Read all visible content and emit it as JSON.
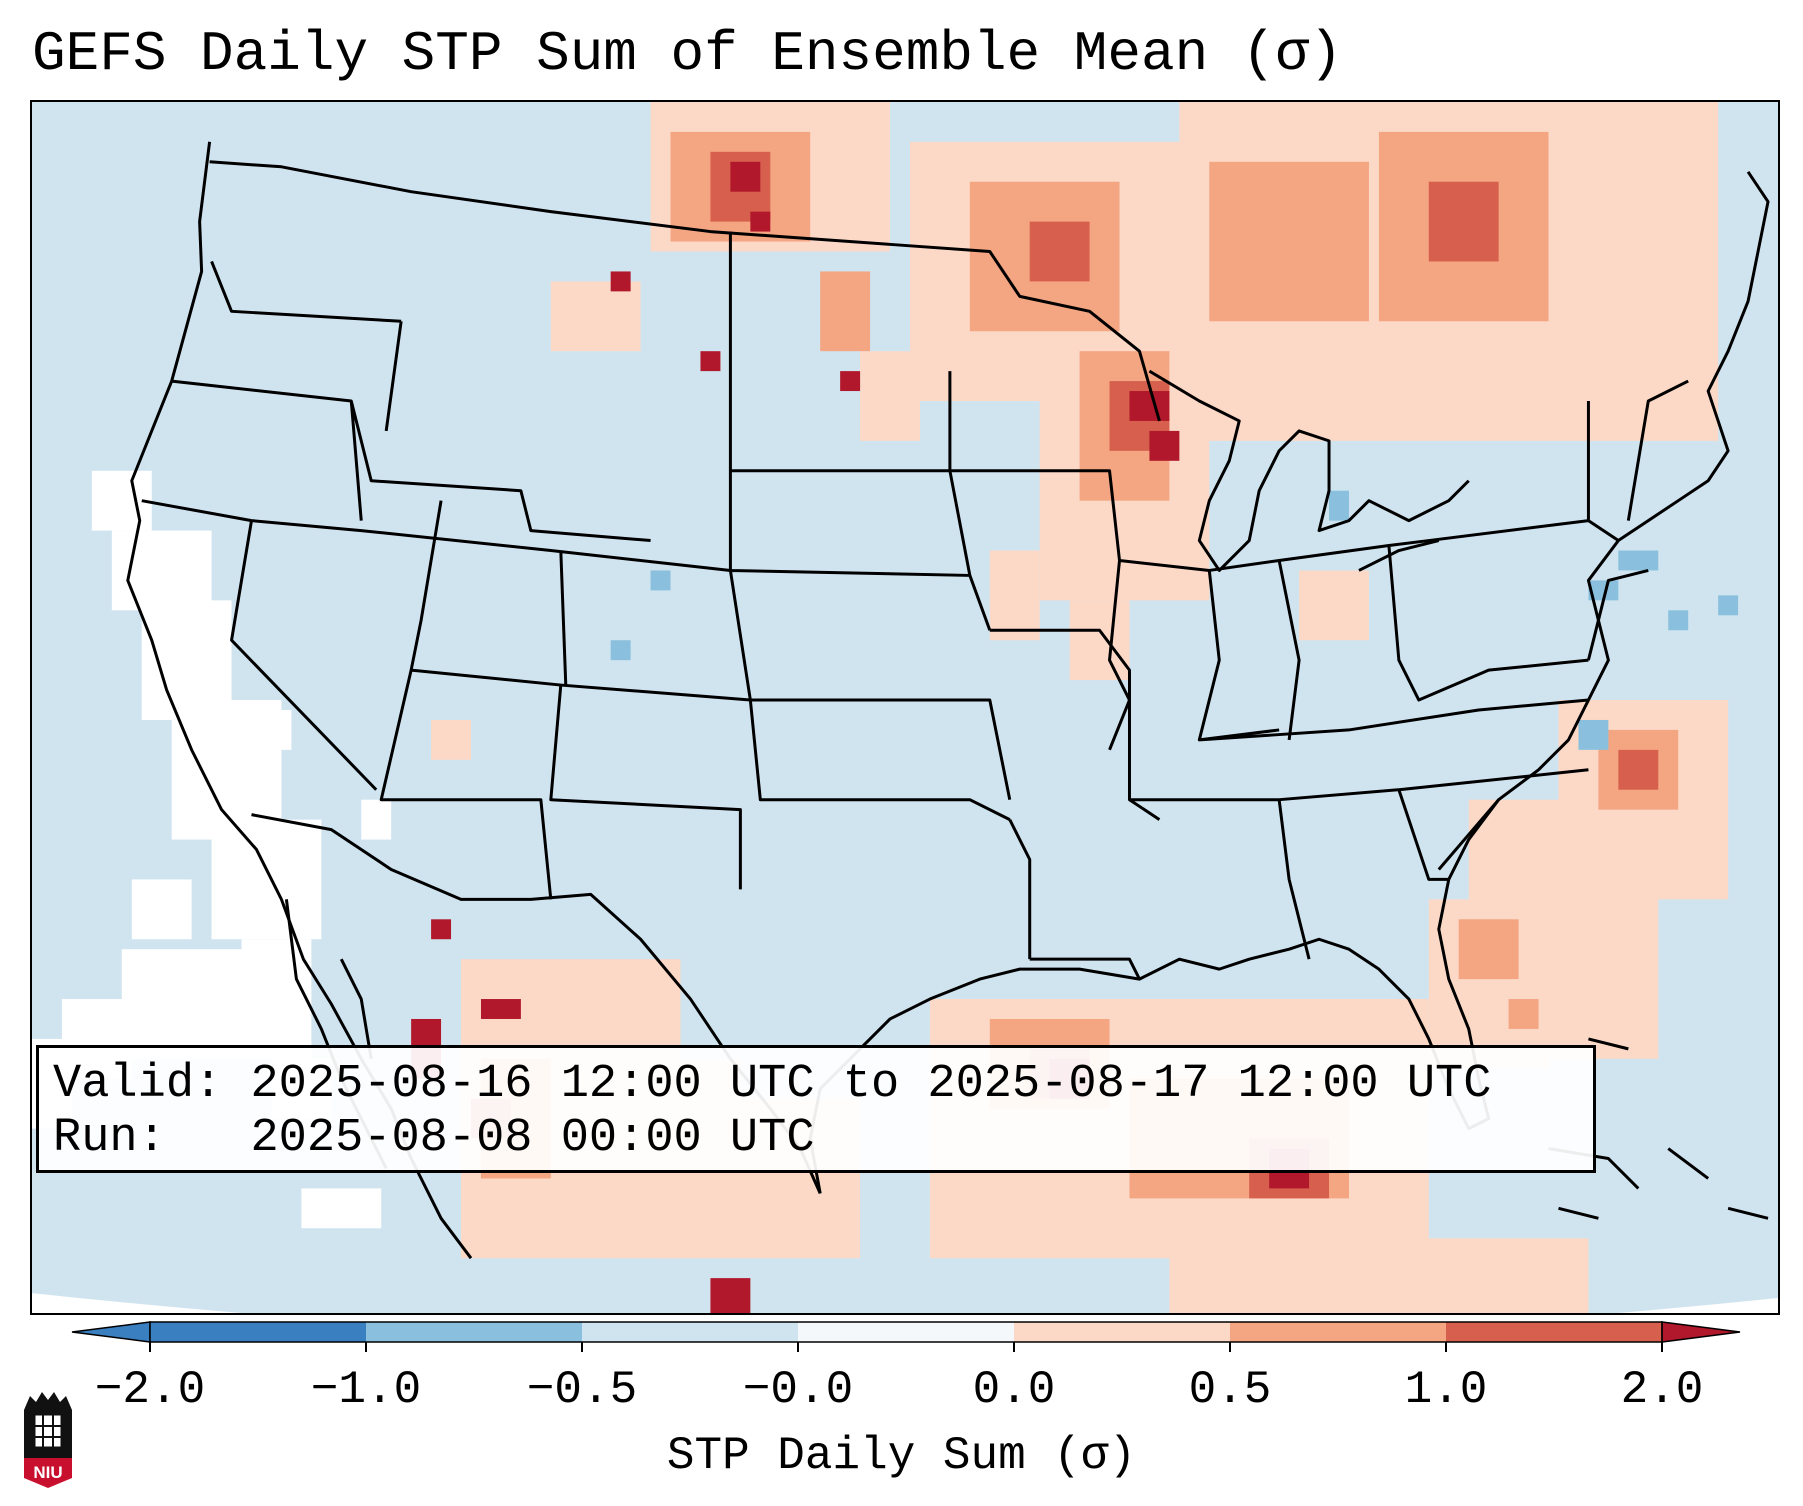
{
  "title": "GEFS Daily STP Sum of Ensemble Mean (σ)",
  "info": {
    "valid_label": "Valid:",
    "valid_value": "2025-08-16 12:00 UTC to 2025-08-17 12:00 UTC",
    "run_label": "Run:",
    "run_value": "2025-08-08 00:00 UTC"
  },
  "colorbar": {
    "label": "STP Daily Sum (σ)",
    "ticks": [
      "−2.0",
      "−1.0",
      "−0.5",
      "−0.0",
      "0.0",
      "0.5",
      "1.0",
      "2.0"
    ],
    "colors": [
      "#3a7fbf",
      "#8ac0dd",
      "#d0e4f0",
      "#f4f8fb",
      "#fcd9c7",
      "#f4a582",
      "#d6604d",
      "#b2182b"
    ],
    "ocean_color": "#d0e4f0"
  },
  "logo": {
    "text": "NIU"
  }
}
